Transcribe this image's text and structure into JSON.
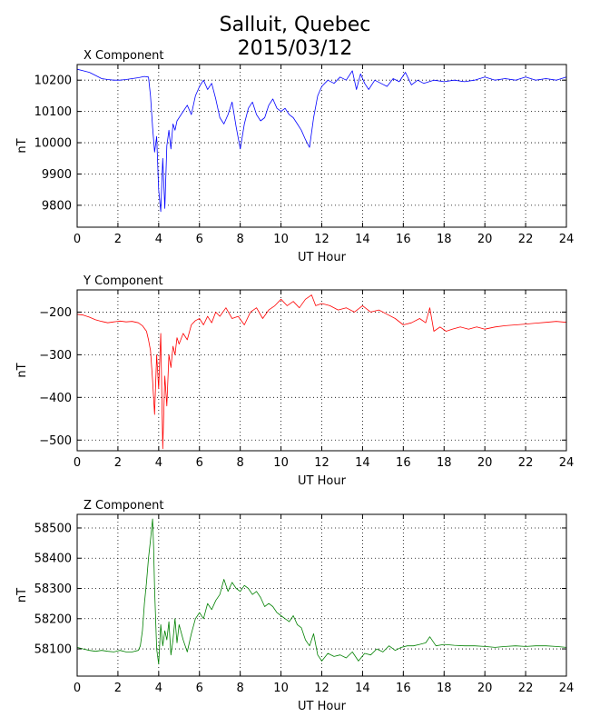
{
  "title_line1": "Salluit, Quebec",
  "title_line2": "2015/03/12",
  "chart_data": [
    {
      "type": "line",
      "title": "X Component",
      "xlabel": "UT Hour",
      "ylabel": "nT",
      "xlim": [
        0,
        24
      ],
      "ylim": [
        9730,
        10250
      ],
      "xticks": [
        0,
        2,
        4,
        6,
        8,
        10,
        12,
        14,
        16,
        18,
        20,
        22,
        24
      ],
      "yticks": [
        9800,
        9900,
        10000,
        10100,
        10200
      ],
      "grid": true,
      "color": "#0000ff",
      "x": [
        0,
        0.3,
        0.6,
        0.9,
        1.2,
        1.5,
        1.8,
        2.1,
        2.4,
        2.7,
        3.0,
        3.3,
        3.5,
        3.6,
        3.7,
        3.8,
        3.9,
        4.0,
        4.1,
        4.2,
        4.3,
        4.4,
        4.5,
        4.6,
        4.7,
        4.8,
        4.9,
        5.0,
        5.2,
        5.4,
        5.6,
        5.8,
        6.0,
        6.2,
        6.4,
        6.6,
        6.8,
        7.0,
        7.2,
        7.4,
        7.6,
        7.8,
        8.0,
        8.2,
        8.4,
        8.6,
        8.8,
        9.0,
        9.2,
        9.4,
        9.6,
        9.8,
        10.0,
        10.2,
        10.4,
        10.6,
        10.8,
        11.0,
        11.2,
        11.4,
        11.6,
        11.8,
        12.0,
        12.3,
        12.6,
        12.9,
        13.2,
        13.5,
        13.7,
        13.9,
        14.1,
        14.3,
        14.6,
        14.9,
        15.2,
        15.5,
        15.8,
        16.1,
        16.4,
        16.7,
        17.0,
        17.5,
        18.0,
        18.5,
        19.0,
        19.5,
        20.0,
        20.5,
        21.0,
        21.5,
        22.0,
        22.5,
        23.0,
        23.5,
        24.0
      ],
      "y": [
        10235,
        10230,
        10225,
        10215,
        10205,
        10202,
        10200,
        10200,
        10202,
        10205,
        10208,
        10212,
        10210,
        10150,
        10050,
        9970,
        10020,
        9850,
        9780,
        9950,
        9790,
        9990,
        10040,
        9980,
        10060,
        10040,
        10070,
        10080,
        10100,
        10120,
        10090,
        10150,
        10180,
        10200,
        10170,
        10190,
        10140,
        10080,
        10060,
        10090,
        10130,
        10050,
        9980,
        10060,
        10110,
        10130,
        10090,
        10070,
        10080,
        10120,
        10140,
        10110,
        10100,
        10110,
        10090,
        10080,
        10060,
        10040,
        10010,
        9985,
        10080,
        10150,
        10180,
        10200,
        10190,
        10210,
        10200,
        10230,
        10170,
        10220,
        10190,
        10170,
        10200,
        10190,
        10180,
        10205,
        10195,
        10225,
        10185,
        10200,
        10190,
        10200,
        10195,
        10200,
        10195,
        10200,
        10210,
        10200,
        10205,
        10200,
        10210,
        10200,
        10205,
        10200,
        10210
      ]
    },
    {
      "type": "line",
      "title": "Y Component",
      "xlabel": "UT Hour",
      "ylabel": "nT",
      "xlim": [
        0,
        24
      ],
      "ylim": [
        -525,
        -148
      ],
      "xticks": [
        0,
        2,
        4,
        6,
        8,
        10,
        12,
        14,
        16,
        18,
        20,
        22,
        24
      ],
      "yticks": [
        -500,
        -400,
        -300,
        -200
      ],
      "grid": true,
      "color": "#ff0000",
      "x": [
        0,
        0.3,
        0.6,
        0.9,
        1.2,
        1.5,
        1.8,
        2.1,
        2.4,
        2.7,
        3.0,
        3.2,
        3.4,
        3.5,
        3.6,
        3.7,
        3.8,
        3.9,
        4.0,
        4.1,
        4.2,
        4.3,
        4.4,
        4.5,
        4.6,
        4.7,
        4.8,
        4.9,
        5.0,
        5.2,
        5.4,
        5.6,
        5.8,
        6.0,
        6.2,
        6.4,
        6.6,
        6.8,
        7.0,
        7.3,
        7.6,
        7.9,
        8.2,
        8.5,
        8.8,
        9.1,
        9.4,
        9.7,
        10.0,
        10.3,
        10.6,
        10.9,
        11.2,
        11.5,
        11.7,
        12.0,
        12.4,
        12.8,
        13.2,
        13.6,
        14.0,
        14.4,
        14.8,
        15.2,
        15.6,
        16.0,
        16.4,
        16.8,
        17.1,
        17.3,
        17.5,
        17.8,
        18.1,
        18.4,
        18.8,
        19.2,
        19.6,
        20.0,
        20.5,
        21.0,
        21.5,
        22.0,
        22.5,
        23.0,
        23.5,
        24.0
      ],
      "y": [
        -205,
        -207,
        -212,
        -218,
        -222,
        -225,
        -223,
        -221,
        -223,
        -222,
        -225,
        -232,
        -245,
        -265,
        -290,
        -360,
        -440,
        -300,
        -380,
        -250,
        -520,
        -350,
        -420,
        -300,
        -330,
        -280,
        -300,
        -260,
        -275,
        -250,
        -265,
        -230,
        -220,
        -215,
        -230,
        -210,
        -225,
        -200,
        -210,
        -190,
        -215,
        -210,
        -230,
        -200,
        -190,
        -215,
        -195,
        -185,
        -170,
        -185,
        -175,
        -190,
        -170,
        -160,
        -185,
        -180,
        -185,
        -195,
        -190,
        -200,
        -185,
        -200,
        -195,
        -205,
        -215,
        -230,
        -225,
        -215,
        -225,
        -190,
        -245,
        -235,
        -245,
        -240,
        -235,
        -240,
        -235,
        -240,
        -235,
        -232,
        -230,
        -228,
        -226,
        -224,
        -222,
        -224
      ]
    },
    {
      "type": "line",
      "title": "Z Component",
      "xlabel": "UT Hour",
      "ylabel": "nT",
      "xlim": [
        0,
        24
      ],
      "ylim": [
        58010,
        58545
      ],
      "xticks": [
        0,
        2,
        4,
        6,
        8,
        10,
        12,
        14,
        16,
        18,
        20,
        22,
        24
      ],
      "yticks": [
        58100,
        58200,
        58300,
        58400,
        58500
      ],
      "grid": true,
      "color": "#008000",
      "x": [
        0,
        0.3,
        0.6,
        0.9,
        1.2,
        1.5,
        1.8,
        2.1,
        2.4,
        2.7,
        3.0,
        3.1,
        3.2,
        3.3,
        3.4,
        3.5,
        3.6,
        3.7,
        3.75,
        3.8,
        3.9,
        4.0,
        4.1,
        4.2,
        4.3,
        4.4,
        4.5,
        4.6,
        4.7,
        4.8,
        4.9,
        5.0,
        5.2,
        5.4,
        5.6,
        5.8,
        6.0,
        6.2,
        6.4,
        6.6,
        6.8,
        7.0,
        7.2,
        7.4,
        7.6,
        7.8,
        8.0,
        8.2,
        8.4,
        8.6,
        8.8,
        9.0,
        9.2,
        9.4,
        9.6,
        9.8,
        10.0,
        10.2,
        10.4,
        10.6,
        10.8,
        11.0,
        11.2,
        11.4,
        11.6,
        11.8,
        12.0,
        12.3,
        12.6,
        12.9,
        13.2,
        13.5,
        13.8,
        14.1,
        14.4,
        14.7,
        15.0,
        15.3,
        15.6,
        15.9,
        16.2,
        16.5,
        16.8,
        17.1,
        17.3,
        17.6,
        18.0,
        18.5,
        19.0,
        19.5,
        20.0,
        20.5,
        21.0,
        21.5,
        22.0,
        22.5,
        23.0,
        23.5,
        24.0
      ],
      "y": [
        58105,
        58100,
        58095,
        58092,
        58095,
        58092,
        58090,
        58095,
        58090,
        58090,
        58095,
        58110,
        58160,
        58250,
        58320,
        58400,
        58460,
        58530,
        58440,
        58300,
        58100,
        58050,
        58180,
        58110,
        58160,
        58130,
        58190,
        58080,
        58130,
        58200,
        58120,
        58180,
        58130,
        58090,
        58150,
        58200,
        58220,
        58200,
        58250,
        58230,
        58260,
        58280,
        58330,
        58290,
        58320,
        58300,
        58290,
        58310,
        58300,
        58280,
        58290,
        58270,
        58240,
        58250,
        58240,
        58220,
        58210,
        58200,
        58190,
        58210,
        58180,
        58170,
        58130,
        58110,
        58150,
        58080,
        58060,
        58085,
        58075,
        58080,
        58070,
        58090,
        58060,
        58085,
        58080,
        58100,
        58090,
        58110,
        58095,
        58105,
        58110,
        58110,
        58115,
        58120,
        58140,
        58110,
        58115,
        58112,
        58110,
        58110,
        58108,
        58105,
        58108,
        58110,
        58108,
        58110,
        58110,
        58108,
        58105
      ]
    }
  ]
}
